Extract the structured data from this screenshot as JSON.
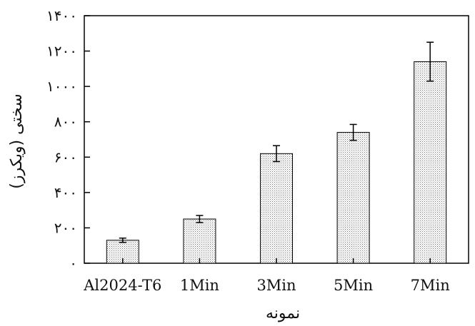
{
  "chart_data": {
    "type": "bar",
    "categories": [
      "Al2024-T6",
      "1Min",
      "3Min",
      "5Min",
      "7Min"
    ],
    "values": [
      130,
      250,
      620,
      740,
      1140
    ],
    "errors": [
      12,
      20,
      45,
      45,
      110
    ],
    "xlabel": "نمونه",
    "ylabel": "سختی (ویکرز)",
    "ylim": [
      0,
      1400
    ],
    "yticks": [
      0,
      200,
      400,
      600,
      800,
      1000,
      1200,
      1400
    ],
    "ytick_labels": [
      "۰",
      "۲۰۰",
      "۴۰۰",
      "۶۰۰",
      "۸۰۰",
      "۱۰۰۰",
      "۱۲۰۰",
      "۱۴۰۰"
    ],
    "bar_fill": "dotted-gray",
    "grid": false,
    "legend": "none"
  }
}
